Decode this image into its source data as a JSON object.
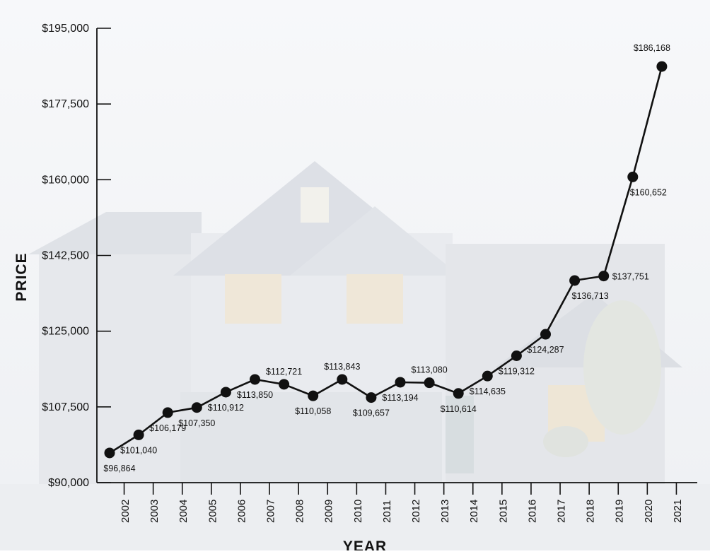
{
  "chart_data": {
    "type": "line",
    "xlabel": "YEAR",
    "ylabel": "PRICE",
    "ylim": [
      90000,
      195000
    ],
    "y_ticks": [
      {
        "value": 90000,
        "label": "$90,000"
      },
      {
        "value": 107500,
        "label": "$107,500"
      },
      {
        "value": 125000,
        "label": "$125,000"
      },
      {
        "value": 142500,
        "label": "$142,500"
      },
      {
        "value": 160000,
        "label": "$160,000"
      },
      {
        "value": 177500,
        "label": "$177,500"
      },
      {
        "value": 195000,
        "label": "$195,000"
      }
    ],
    "years": [
      "2002",
      "2003",
      "2004",
      "2005",
      "2006",
      "2007",
      "2008",
      "2009",
      "2010",
      "2011",
      "2012",
      "2013",
      "2014",
      "2015",
      "2016",
      "2017",
      "2018",
      "2019",
      "2020",
      "2021"
    ],
    "points": [
      {
        "value": 96864,
        "label": "$96,864"
      },
      {
        "value": 101040,
        "label": "$101,040"
      },
      {
        "value": 106179,
        "label": "$106,179"
      },
      {
        "value": 107350,
        "label": "$107,350"
      },
      {
        "value": 110912,
        "label": "$110,912"
      },
      {
        "value": 113850,
        "label": "$113,850"
      },
      {
        "value": 112721,
        "label": "$112,721"
      },
      {
        "value": 110058,
        "label": "$110,058"
      },
      {
        "value": 113843,
        "label": "$113,843"
      },
      {
        "value": 109657,
        "label": "$109,657"
      },
      {
        "value": 113194,
        "label": "$113,194"
      },
      {
        "value": 113080,
        "label": "$113,080"
      },
      {
        "value": 110614,
        "label": "$110,614"
      },
      {
        "value": 114635,
        "label": "$114,635"
      },
      {
        "value": 119312,
        "label": "$119,312"
      },
      {
        "value": 124287,
        "label": "$124,287"
      },
      {
        "value": 136713,
        "label": "$136,713"
      },
      {
        "value": 137751,
        "label": "$137,751"
      },
      {
        "value": 160652,
        "label": "$160,652"
      },
      {
        "value": 186168,
        "label": "$186,168"
      }
    ],
    "grid": false,
    "legend": "none",
    "background": "faded photo of a two-story house",
    "colors": {
      "line": "#111111",
      "marker": "#111111",
      "text": "#111111"
    }
  }
}
